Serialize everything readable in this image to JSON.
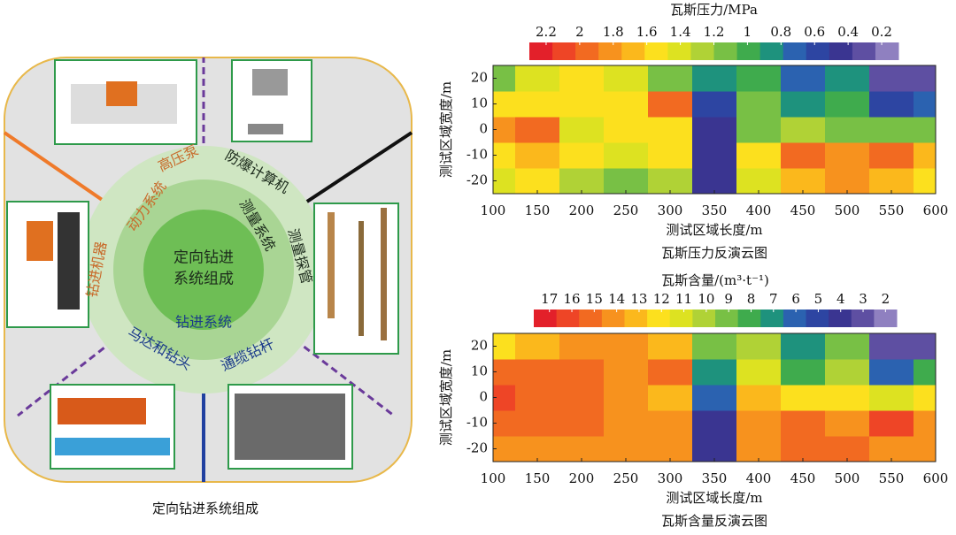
{
  "diagram": {
    "center": [
      "定向钻进",
      "系统组成"
    ],
    "segments": [
      "高压泵",
      "动力系统",
      "防爆计算机",
      "测量系统",
      "钻进系统",
      "马达和钻头",
      "通缆钻杆",
      "测量探管",
      "钻进机器"
    ],
    "caption": "定向钻进系统组成"
  },
  "chart_data": [
    {
      "type": "contour",
      "title": "瓦斯压力/MPa",
      "xlabel": "测试区域长度/m",
      "ylabel": "测试区域宽度/m",
      "caption": "瓦斯压力反演云图",
      "x": [
        100,
        150,
        200,
        250,
        300,
        350,
        400,
        450,
        500,
        550,
        600
      ],
      "y": [
        -20,
        -10,
        0,
        10,
        20
      ],
      "z": [
        [
          1.4,
          1.5,
          1.3,
          1.2,
          1.3,
          0.4,
          1.4,
          1.7,
          1.8,
          1.7,
          1.5
        ],
        [
          1.6,
          1.7,
          1.5,
          1.4,
          1.6,
          0.4,
          1.6,
          2.0,
          1.8,
          2.0,
          1.7
        ],
        [
          1.8,
          1.9,
          1.4,
          1.6,
          1.5,
          0.5,
          1.2,
          1.3,
          1.2,
          1.1,
          1.2
        ],
        [
          1.5,
          1.6,
          1.5,
          1.6,
          2.0,
          0.6,
          1.1,
          0.8,
          1.0,
          0.6,
          0.7
        ],
        [
          1.2,
          1.4,
          1.5,
          1.4,
          1.2,
          0.8,
          1.0,
          0.7,
          0.8,
          0.3,
          0.3
        ]
      ],
      "xlim": [
        100,
        600
      ],
      "xticks": [
        100,
        150,
        200,
        250,
        300,
        350,
        400,
        450,
        500,
        550,
        600
      ],
      "ylim": [
        -25,
        25
      ],
      "yticks": [
        -20,
        -10,
        0,
        10,
        20
      ],
      "clim": [
        2.3,
        0.1
      ],
      "cticks": [
        2.2,
        2.0,
        1.8,
        1.6,
        1.4,
        1.2,
        1.0,
        0.8,
        0.6,
        0.4,
        0.2
      ],
      "colors": [
        "#e3202a",
        "#ee4526",
        "#f26a21",
        "#f7921e",
        "#fbb81c",
        "#fce01e",
        "#dde221",
        "#b0d236",
        "#78c045",
        "#3fab4d",
        "#1e927d",
        "#2b62b0",
        "#2d45a2",
        "#3a3591",
        "#5e4fa2",
        "#8f80c0"
      ]
    },
    {
      "type": "contour",
      "title": "瓦斯含量/(m³·t⁻¹)",
      "xlabel": "测试区域长度/m",
      "ylabel": "测试区域宽度/m",
      "caption": "瓦斯含量反演云图",
      "x": [
        100,
        150,
        200,
        250,
        300,
        350,
        400,
        450,
        500,
        550,
        600
      ],
      "y": [
        -20,
        -10,
        0,
        10,
        20
      ],
      "z": [
        [
          14,
          14,
          14,
          14,
          14,
          4,
          14,
          15,
          15,
          14,
          14
        ],
        [
          15,
          15,
          15,
          14,
          14,
          4,
          14,
          15,
          14,
          16,
          14
        ],
        [
          16,
          15,
          15,
          14,
          13,
          6,
          13,
          12,
          12,
          11,
          12
        ],
        [
          15,
          15,
          15,
          14,
          15,
          7,
          11,
          8,
          10,
          6,
          8
        ],
        [
          12,
          13,
          14,
          14,
          13,
          9,
          10,
          7,
          9,
          3,
          3
        ]
      ],
      "xlim": [
        100,
        600
      ],
      "xticks": [
        100,
        150,
        200,
        250,
        300,
        350,
        400,
        450,
        500,
        550,
        600
      ],
      "ylim": [
        -25,
        25
      ],
      "yticks": [
        -20,
        -10,
        0,
        10,
        20
      ],
      "clim": [
        17.7,
        1.5
      ],
      "cticks": [
        17,
        16,
        15,
        14,
        13,
        12,
        11,
        10,
        9,
        8,
        7,
        6,
        5,
        4,
        3,
        2
      ],
      "colors": [
        "#e3202a",
        "#ee4526",
        "#f26a21",
        "#f7921e",
        "#fbb81c",
        "#fce01e",
        "#dde221",
        "#b0d236",
        "#78c045",
        "#3fab4d",
        "#1e927d",
        "#2b62b0",
        "#2d45a2",
        "#3a3591",
        "#5e4fa2",
        "#8f80c0"
      ]
    }
  ]
}
